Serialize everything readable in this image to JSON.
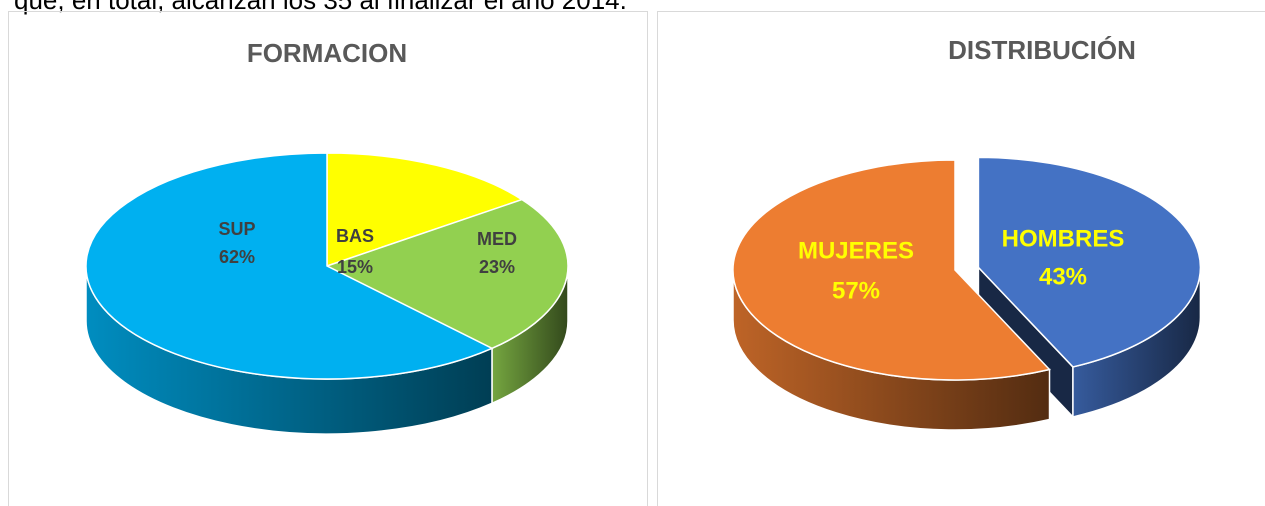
{
  "intro_text": "que, en total, alcanzan los 35 al finalizar el año 2014.",
  "chart_data": [
    {
      "type": "pie",
      "title": "FORMACION",
      "categories": [
        "BAS",
        "MED",
        "SUP"
      ],
      "values": [
        15,
        23,
        62
      ],
      "value_labels": [
        "15%",
        "23%",
        "62%"
      ],
      "colors": [
        "#ffff00",
        "#92d050",
        "#00b0f0"
      ],
      "label_color": "#404040"
    },
    {
      "type": "pie",
      "title": "DISTRIBUCIÓN",
      "categories": [
        "HOMBRES",
        "MUJERES"
      ],
      "values": [
        43,
        57
      ],
      "value_labels": [
        "43%",
        "57%"
      ],
      "colors": [
        "#4472c4",
        "#ed7d31"
      ],
      "label_color": "#ffff00"
    }
  ]
}
